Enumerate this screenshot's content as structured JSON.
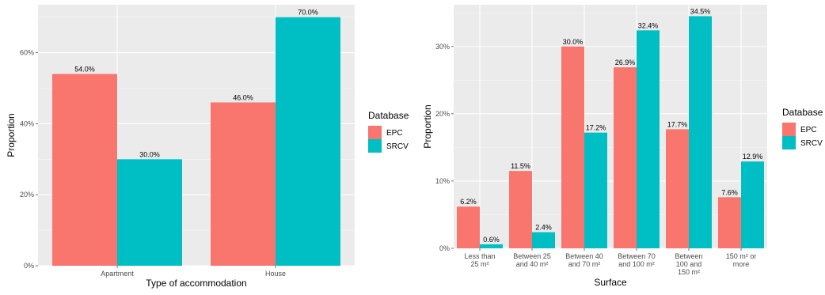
{
  "chart_data": [
    {
      "type": "bar",
      "xlabel": "Type of accommodation",
      "ylabel": "Proportion",
      "categories": [
        [
          "Apartment"
        ],
        [
          "House"
        ]
      ],
      "series": [
        {
          "name": "EPC",
          "values": [
            54.0,
            46.0
          ],
          "labels": [
            "54.0%",
            "46.0%"
          ],
          "color": "#F8766D"
        },
        {
          "name": "SRCV",
          "values": [
            30.0,
            70.0
          ],
          "labels": [
            "30.0%",
            "70.0%"
          ],
          "color": "#00BFC4"
        }
      ],
      "ylim": [
        0,
        73.5
      ],
      "yticks": [
        0,
        20,
        40,
        60
      ],
      "ytick_labels": [
        "0%",
        "20%",
        "40%",
        "60%"
      ],
      "legend": {
        "title": "Database",
        "position": "right"
      },
      "grid": true
    },
    {
      "type": "bar",
      "xlabel": "Surface",
      "ylabel": "Proportion",
      "categories": [
        [
          "Less than",
          "25 m²"
        ],
        [
          "Between 25",
          "and 40 m²"
        ],
        [
          "Between 40",
          "and 70 m²"
        ],
        [
          "Between 70",
          "and 100 m²"
        ],
        [
          "Between",
          "100 and",
          "150 m²"
        ],
        [
          "150 m² or",
          "more"
        ]
      ],
      "series": [
        {
          "name": "EPC",
          "values": [
            6.2,
            11.5,
            30.0,
            26.9,
            17.7,
            7.6
          ],
          "labels": [
            "6.2%",
            "11.5%",
            "30.0%",
            "26.9%",
            "17.7%",
            "7.6%"
          ],
          "color": "#F8766D"
        },
        {
          "name": "SRCV",
          "values": [
            0.6,
            2.4,
            17.2,
            32.4,
            34.5,
            12.9
          ],
          "labels": [
            "0.6%",
            "2.4%",
            "17.2%",
            "32.4%",
            "34.5%",
            "12.9%"
          ],
          "color": "#00BFC4"
        }
      ],
      "ylim": [
        0,
        36.2
      ],
      "yticks": [
        0,
        10,
        20,
        30
      ],
      "ytick_labels": [
        "0%",
        "10%",
        "20%",
        "30%"
      ],
      "legend": {
        "title": "Database",
        "position": "right"
      },
      "grid": true
    }
  ]
}
